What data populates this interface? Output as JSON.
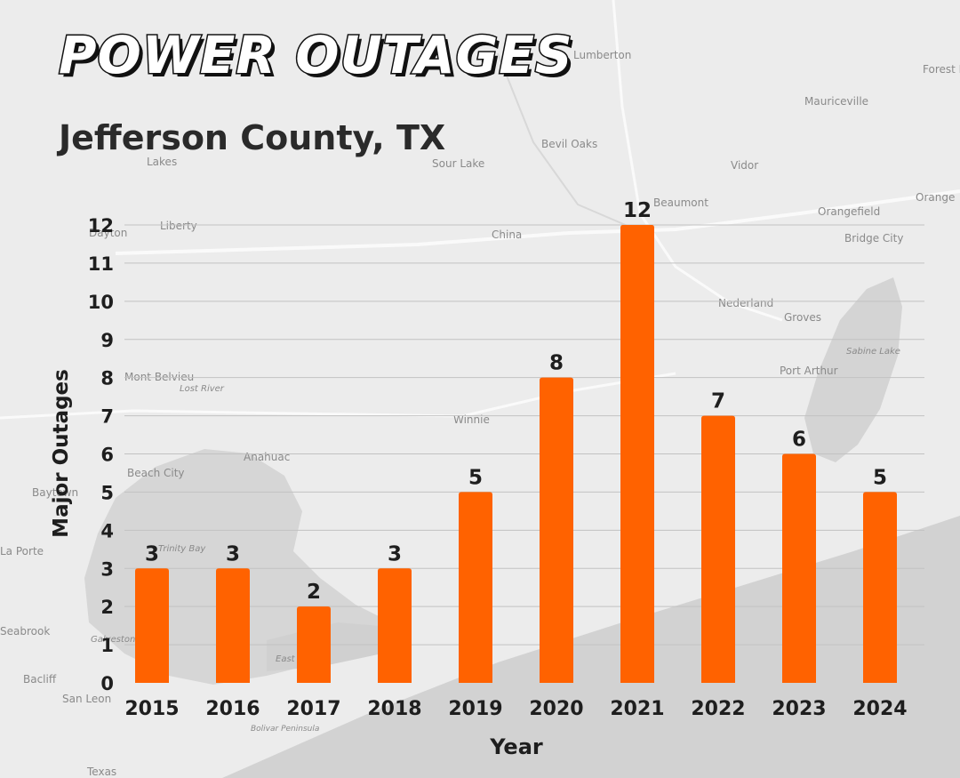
{
  "title": "POWER OUTAGES",
  "subtitle": "Jefferson County, TX",
  "colors": {
    "bar": "#ff6200",
    "grid": "#c2c2c2",
    "text": "#1e1e1e",
    "map_land": "#ececec",
    "map_water": "#d2d2d2"
  },
  "chart_data": {
    "type": "bar",
    "categories": [
      "2015",
      "2016",
      "2017",
      "2018",
      "2019",
      "2020",
      "2021",
      "2022",
      "2023",
      "2024"
    ],
    "values": [
      3,
      3,
      2,
      3,
      5,
      8,
      12,
      7,
      6,
      5
    ],
    "xlabel": "Year",
    "ylabel": "Major Outages",
    "ylim": [
      0,
      12
    ],
    "yticks": [
      "0",
      "1",
      "2",
      "3",
      "4",
      "5",
      "6",
      "7",
      "8",
      "9",
      "10",
      "11",
      "12"
    ],
    "grid": true,
    "legend": "none"
  },
  "map_labels": [
    "Lumberton",
    "Forest Heights",
    "Mauriceville",
    "Bevil Oaks",
    "Sour Lake",
    "Lakes",
    "Vidor",
    "Beaumont",
    "Orange",
    "Orangefield",
    "Bridge City",
    "Liberty",
    "Dayton",
    "China",
    "Nederland",
    "Groves",
    "Port Arthur",
    "Sabine Lake",
    "Mont Belvieu",
    "Lost River",
    "Winnie",
    "Anahuac",
    "Beach City",
    "Baytown",
    "Trinity Bay",
    "La Porte",
    "Seabrook",
    "Galveston Bay",
    "East Bay",
    "Bacliff",
    "San Leon",
    "Bolivar Peninsula",
    "Texas"
  ]
}
